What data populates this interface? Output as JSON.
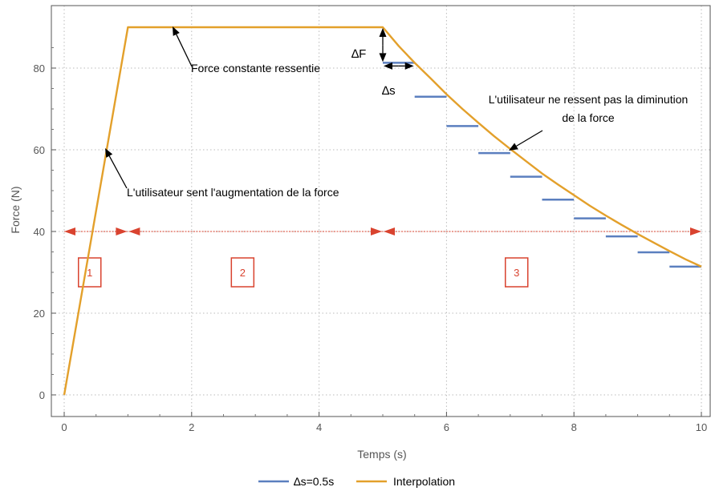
{
  "chart_data": {
    "type": "line",
    "xlabel": "Temps (s)",
    "ylabel": "Force (N)",
    "xlim": [
      0,
      10
    ],
    "ylim": [
      0,
      90
    ],
    "xticks": [
      0,
      2,
      4,
      6,
      8,
      10
    ],
    "yticks": [
      0,
      20,
      40,
      60,
      80
    ],
    "grid": true,
    "legend_position": "bottom",
    "colors": {
      "steps": "#5b7fbf",
      "interpolation": "#e3a02b",
      "annotation": "#d9432f",
      "arrow": "#000000"
    },
    "series": [
      {
        "name": "Interpolation",
        "type": "line",
        "x": [
          0,
          1,
          5,
          5.25,
          5.5,
          5.75,
          6,
          6.25,
          6.5,
          6.75,
          7,
          7.25,
          7.5,
          7.75,
          8,
          8.25,
          8.5,
          8.75,
          9,
          9.25,
          9.5,
          9.75,
          10
        ],
        "y": [
          0,
          90,
          90,
          85.4,
          81.3,
          77.5,
          73.6,
          70.0,
          66.6,
          63.3,
          60.2,
          57.2,
          54.2,
          51.5,
          48.9,
          46.3,
          43.9,
          41.6,
          39.4,
          37.3,
          35.2,
          33.2,
          31.4
        ]
      },
      {
        "name": "∆s=0.5s",
        "type": "step",
        "x0": [
          5,
          5.5,
          6,
          6.5,
          7,
          7.5,
          8,
          8.5,
          9,
          9.5
        ],
        "x1": [
          5.5,
          6,
          6.5,
          7,
          7.5,
          8,
          8.5,
          9,
          9.5,
          10
        ],
        "y": [
          81.3,
          73,
          65.8,
          59.2,
          53.4,
          47.8,
          43.2,
          38.8,
          34.9,
          31.4
        ]
      }
    ],
    "annotations": [
      {
        "text": "Force constante ressentie",
        "target": [
          1.7,
          90
        ],
        "text_pos": [
          2,
          80
        ]
      },
      {
        "text": "L'utilisateur sent l'augmentation de la force",
        "target": [
          0.65,
          60
        ],
        "text_pos": [
          1,
          50
        ]
      },
      {
        "text": "L'utilisateur ne ressent pas la diminution",
        "target": [
          7.0,
          59
        ],
        "text_pos": [
          8.5,
          72.5
        ]
      },
      {
        "text": "de la force",
        "target": null,
        "text_pos": [
          8.5,
          68
        ]
      }
    ],
    "delta_labels": {
      "force": "∆F",
      "time": "∆s"
    },
    "zones": [
      {
        "label": "1",
        "x_start": 0,
        "x_end": 1,
        "box_x": 0.4
      },
      {
        "label": "2",
        "x_start": 1,
        "x_end": 5,
        "box_x": 2.8
      },
      {
        "label": "3",
        "x_start": 5,
        "x_end": 10,
        "box_x": 7.1
      }
    ],
    "zone_line_y": 40,
    "zone_box_y": 30
  }
}
